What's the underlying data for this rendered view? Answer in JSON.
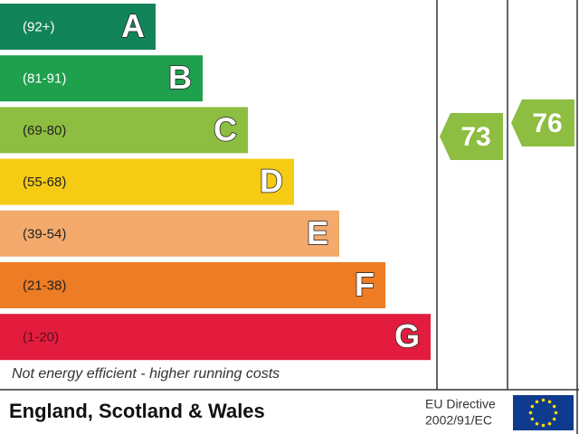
{
  "bands": [
    {
      "range": "(92+)",
      "letter": "A",
      "color": "#12845a",
      "text_color": "#ffffff"
    },
    {
      "range": "(81-91)",
      "letter": "B",
      "color": "#1ea04c",
      "text_color": "#ffffff"
    },
    {
      "range": "(69-80)",
      "letter": "C",
      "color": "#8dbd41",
      "text_color": "#222222"
    },
    {
      "range": "(55-68)",
      "letter": "D",
      "color": "#f5cb14",
      "text_color": "#222222"
    },
    {
      "range": "(39-54)",
      "letter": "E",
      "color": "#f3aa6c",
      "text_color": "#222222"
    },
    {
      "range": "(21-38)",
      "letter": "F",
      "color": "#ed7c25",
      "text_color": "#222222"
    },
    {
      "range": "(1-20)",
      "letter": "G",
      "color": "#e31c3d",
      "text_color": "#5a1020"
    }
  ],
  "current": {
    "value": "73",
    "color": "#8dbd41"
  },
  "potential": {
    "value": "76",
    "color": "#8dbd41"
  },
  "footer_note": "Not energy efficient - higher running costs",
  "region": "England, Scotland & Wales",
  "directive": {
    "line1": "EU Directive",
    "line2": "2002/91/EC"
  }
}
